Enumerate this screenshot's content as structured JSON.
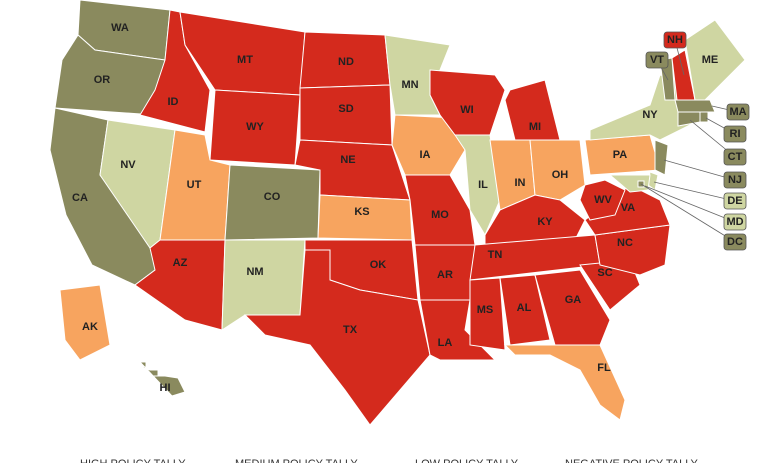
{
  "map": {
    "legend": [
      {
        "label": "HIGH POLICY TALLY",
        "color": "#8a8a5e"
      },
      {
        "label": "MEDIUM POLICY TALLY",
        "color": "#cfd6a2"
      },
      {
        "label": "LOW POLICY TALLY",
        "color": "#f7a45f"
      },
      {
        "label": "NEGATIVE POLICY TALLY",
        "color": "#d42a1d"
      }
    ],
    "states": [
      {
        "code": "WA",
        "category": 0
      },
      {
        "code": "OR",
        "category": 0
      },
      {
        "code": "CA",
        "category": 0
      },
      {
        "code": "NV",
        "category": 1
      },
      {
        "code": "ID",
        "category": 3
      },
      {
        "code": "MT",
        "category": 3
      },
      {
        "code": "WY",
        "category": 3
      },
      {
        "code": "UT",
        "category": 2
      },
      {
        "code": "CO",
        "category": 0
      },
      {
        "code": "AZ",
        "category": 3
      },
      {
        "code": "NM",
        "category": 1
      },
      {
        "code": "ND",
        "category": 3
      },
      {
        "code": "SD",
        "category": 3
      },
      {
        "code": "NE",
        "category": 3
      },
      {
        "code": "KS",
        "category": 2
      },
      {
        "code": "OK",
        "category": 3
      },
      {
        "code": "TX",
        "category": 3
      },
      {
        "code": "MN",
        "category": 1
      },
      {
        "code": "IA",
        "category": 2
      },
      {
        "code": "MO",
        "category": 3
      },
      {
        "code": "AR",
        "category": 3
      },
      {
        "code": "LA",
        "category": 3
      },
      {
        "code": "WI",
        "category": 3
      },
      {
        "code": "IL",
        "category": 1
      },
      {
        "code": "MI",
        "category": 3
      },
      {
        "code": "IN",
        "category": 2
      },
      {
        "code": "OH",
        "category": 2
      },
      {
        "code": "KY",
        "category": 3
      },
      {
        "code": "TN",
        "category": 3
      },
      {
        "code": "MS",
        "category": 3
      },
      {
        "code": "AL",
        "category": 3
      },
      {
        "code": "GA",
        "category": 3
      },
      {
        "code": "FL",
        "category": 2
      },
      {
        "code": "SC",
        "category": 3
      },
      {
        "code": "NC",
        "category": 3
      },
      {
        "code": "VA",
        "category": 3
      },
      {
        "code": "WV",
        "category": 3
      },
      {
        "code": "PA",
        "category": 2
      },
      {
        "code": "NY",
        "category": 1
      },
      {
        "code": "VT",
        "category": 0
      },
      {
        "code": "NH",
        "category": 3
      },
      {
        "code": "ME",
        "category": 1
      },
      {
        "code": "MA",
        "category": 0
      },
      {
        "code": "RI",
        "category": 0
      },
      {
        "code": "CT",
        "category": 0
      },
      {
        "code": "NJ",
        "category": 0
      },
      {
        "code": "DE",
        "category": 1
      },
      {
        "code": "MD",
        "category": 1
      },
      {
        "code": "DC",
        "category": 0
      },
      {
        "code": "AK",
        "category": 2
      },
      {
        "code": "HI",
        "category": 0
      }
    ]
  }
}
